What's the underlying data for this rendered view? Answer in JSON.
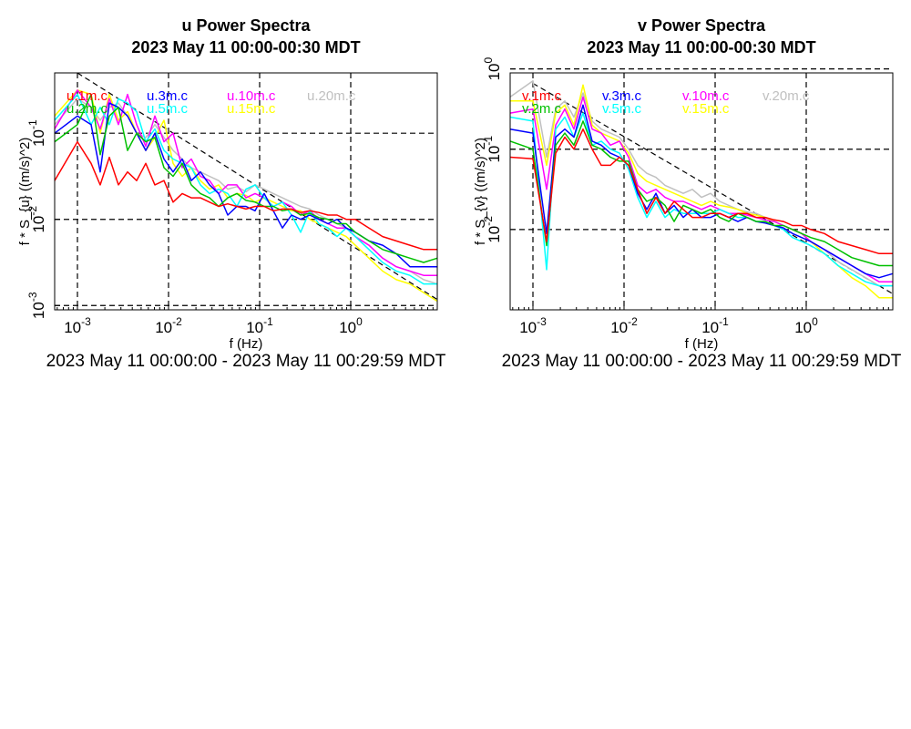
{
  "chart_data": [
    {
      "type": "line",
      "title": "u Power Spectra",
      "subtitle": "2023 May 11 00:00-00:30 MDT",
      "xlabel": "f (Hz)",
      "ylabel": "f * S_{u} ((m/s)^2)",
      "date_range": "2023 May 11 00:00:00 - 2023 May 11 00:29:59 MDT",
      "x_scale": "log",
      "y_scale": "log",
      "xlim_log10": [
        -3.25,
        0.95
      ],
      "ylim_log10": [
        -3.05,
        -0.3
      ],
      "xticks": [
        {
          "base": "10",
          "exp": "-3",
          "log": -3
        },
        {
          "base": "10",
          "exp": "-2",
          "log": -2
        },
        {
          "base": "10",
          "exp": "-1",
          "log": -1
        },
        {
          "base": "10",
          "exp": "0",
          "log": 0
        }
      ],
      "yticks": [
        {
          "base": "10",
          "exp": "-3",
          "log": -3
        },
        {
          "base": "10",
          "exp": "-2",
          "log": -2
        },
        {
          "base": "10",
          "exp": "-1",
          "log": -1
        }
      ],
      "grid": "dashed at decades",
      "reference_line": {
        "style": "dashed",
        "slope": -0.667,
        "log_x": [
          -3,
          0.95
        ],
        "log_y": [
          -0.3,
          -2.93
        ]
      },
      "x_log": [
        -3.25,
        -3.0,
        -2.85,
        -2.75,
        -2.65,
        -2.55,
        -2.45,
        -2.35,
        -2.25,
        -2.15,
        -2.05,
        -1.95,
        -1.85,
        -1.75,
        -1.65,
        -1.55,
        -1.45,
        -1.35,
        -1.25,
        -1.15,
        -1.05,
        -0.95,
        -0.85,
        -0.75,
        -0.65,
        -0.55,
        -0.45,
        -0.35,
        -0.25,
        -0.15,
        -0.05,
        0.05,
        0.2,
        0.35,
        0.5,
        0.65,
        0.8,
        0.95
      ],
      "series": [
        {
          "name": "u.1m.c",
          "color": "#ff0000",
          "values_log10": [
            -1.55,
            -1.1,
            -1.35,
            -1.6,
            -1.28,
            -1.6,
            -1.45,
            -1.55,
            -1.35,
            -1.6,
            -1.55,
            -1.8,
            -1.7,
            -1.75,
            -1.75,
            -1.8,
            -1.85,
            -1.82,
            -1.85,
            -1.88,
            -1.85,
            -1.85,
            -1.9,
            -1.88,
            -1.88,
            -1.92,
            -1.9,
            -1.92,
            -1.95,
            -1.95,
            -2.0,
            -2.0,
            -2.1,
            -2.2,
            -2.25,
            -2.3,
            -2.35,
            -2.35
          ]
        },
        {
          "name": "u.2m.c",
          "color": "#00c000",
          "values_log10": [
            -1.1,
            -0.9,
            -0.55,
            -1.25,
            -0.8,
            -0.7,
            -1.2,
            -1.0,
            -1.1,
            -1.05,
            -1.4,
            -1.5,
            -1.35,
            -1.6,
            -1.7,
            -1.75,
            -1.85,
            -1.75,
            -1.7,
            -1.78,
            -1.8,
            -1.85,
            -1.85,
            -1.9,
            -1.88,
            -1.95,
            -1.93,
            -1.98,
            -2.0,
            -2.05,
            -2.05,
            -2.15,
            -2.25,
            -2.35,
            -2.4,
            -2.45,
            -2.5,
            -2.45
          ]
        },
        {
          "name": "u.3m.c",
          "color": "#0000ff",
          "values_log10": [
            -1.0,
            -0.8,
            -0.9,
            -1.45,
            -0.65,
            -0.7,
            -0.8,
            -1.0,
            -1.2,
            -1.0,
            -1.3,
            -1.45,
            -1.3,
            -1.55,
            -1.45,
            -1.6,
            -1.7,
            -1.95,
            -1.85,
            -1.85,
            -1.9,
            -1.7,
            -1.9,
            -2.1,
            -1.95,
            -2.0,
            -1.95,
            -2.0,
            -2.05,
            -2.0,
            -2.1,
            -2.15,
            -2.25,
            -2.3,
            -2.4,
            -2.55,
            -2.55,
            -2.55
          ]
        },
        {
          "name": "u.5m.c",
          "color": "#00ffff",
          "values_log10": [
            -0.85,
            -0.55,
            -0.9,
            -0.7,
            -0.9,
            -0.6,
            -0.65,
            -0.75,
            -1.1,
            -0.95,
            -1.2,
            -1.3,
            -1.35,
            -1.4,
            -1.6,
            -1.7,
            -1.65,
            -1.7,
            -1.85,
            -1.65,
            -1.6,
            -1.75,
            -1.85,
            -1.8,
            -1.95,
            -2.15,
            -1.9,
            -2.05,
            -2.1,
            -2.2,
            -2.1,
            -2.2,
            -2.35,
            -2.5,
            -2.6,
            -2.65,
            -2.75,
            -2.75
          ]
        },
        {
          "name": "u.10m.c",
          "color": "#ff00ff",
          "values_log10": [
            -0.95,
            -0.5,
            -0.7,
            -0.95,
            -0.6,
            -0.9,
            -0.55,
            -0.9,
            -1.15,
            -0.8,
            -1.1,
            -1.0,
            -1.4,
            -1.3,
            -1.5,
            -1.55,
            -1.7,
            -1.6,
            -1.6,
            -1.75,
            -1.7,
            -1.75,
            -1.85,
            -1.8,
            -1.85,
            -1.95,
            -1.9,
            -2.0,
            -2.05,
            -2.1,
            -2.1,
            -2.2,
            -2.3,
            -2.45,
            -2.55,
            -2.6,
            -2.65,
            -2.65
          ]
        },
        {
          "name": "u.15m.c",
          "color": "#ffff00",
          "values_log10": [
            -0.8,
            -0.5,
            -0.55,
            -1.0,
            -0.55,
            -0.85,
            -0.75,
            -1.0,
            -1.2,
            -1.05,
            -0.85,
            -1.35,
            -1.5,
            -1.4,
            -1.55,
            -1.65,
            -1.6,
            -1.75,
            -1.7,
            -1.72,
            -1.8,
            -1.75,
            -1.8,
            -1.85,
            -1.9,
            -1.9,
            -2.0,
            -2.05,
            -2.1,
            -2.15,
            -2.2,
            -2.3,
            -2.45,
            -2.6,
            -2.7,
            -2.75,
            -2.85,
            -2.95
          ]
        },
        {
          "name": "u.20m.c",
          "color": "#c0c0c0",
          "values_log10": [
            -0.9,
            -0.6,
            -0.7,
            -0.85,
            -0.7,
            -0.65,
            -0.8,
            -1.0,
            -1.05,
            -0.9,
            -1.05,
            -1.2,
            -1.3,
            -1.4,
            -1.45,
            -1.5,
            -1.55,
            -1.65,
            -1.62,
            -1.68,
            -1.6,
            -1.65,
            -1.7,
            -1.75,
            -1.8,
            -1.85,
            -1.88,
            -1.95,
            -2.0,
            -2.05,
            -2.1,
            -2.2,
            -2.3,
            -2.45,
            -2.55,
            -2.6,
            -2.7,
            -2.75
          ]
        }
      ]
    },
    {
      "type": "line",
      "title": "v Power Spectra",
      "subtitle": "2023 May 11 00:00-00:30 MDT",
      "xlabel": "f (Hz)",
      "ylabel": "f * S_{v} ((m/s)^2)",
      "date_range": "2023 May 11 00:00:00 - 2023 May 11 00:29:59 MDT",
      "x_scale": "log",
      "y_scale": "log",
      "xlim_log10": [
        -3.25,
        0.95
      ],
      "ylim_log10": [
        -3.0,
        -0.05
      ],
      "xticks": [
        {
          "base": "10",
          "exp": "-3",
          "log": -3
        },
        {
          "base": "10",
          "exp": "-2",
          "log": -2
        },
        {
          "base": "10",
          "exp": "-1",
          "log": -1
        },
        {
          "base": "10",
          "exp": "0",
          "log": 0
        }
      ],
      "yticks": [
        {
          "base": "10",
          "exp": "-2",
          "log": -2
        },
        {
          "base": "10",
          "exp": "-1",
          "log": -1
        },
        {
          "base": "10",
          "exp": "0",
          "log": 0
        }
      ],
      "grid": "dashed at decades",
      "reference_line": {
        "style": "dashed",
        "slope": -0.667,
        "log_x": [
          -3,
          0.95
        ],
        "log_y": [
          -0.18,
          -2.8
        ]
      },
      "x_log": [
        -3.25,
        -3.0,
        -2.85,
        -2.75,
        -2.65,
        -2.55,
        -2.45,
        -2.35,
        -2.25,
        -2.15,
        -2.05,
        -1.95,
        -1.85,
        -1.75,
        -1.65,
        -1.55,
        -1.45,
        -1.35,
        -1.25,
        -1.15,
        -1.05,
        -0.95,
        -0.85,
        -0.75,
        -0.65,
        -0.55,
        -0.45,
        -0.35,
        -0.25,
        -0.15,
        -0.05,
        0.05,
        0.2,
        0.35,
        0.5,
        0.65,
        0.8,
        0.95
      ],
      "series": [
        {
          "name": "v.1m.c",
          "color": "#ff0000",
          "values_log10": [
            -1.1,
            -1.12,
            -2.15,
            -1.05,
            -0.85,
            -1.0,
            -0.75,
            -1.0,
            -1.2,
            -1.2,
            -1.1,
            -1.2,
            -1.5,
            -1.8,
            -1.6,
            -1.8,
            -1.65,
            -1.75,
            -1.85,
            -1.85,
            -1.8,
            -1.8,
            -1.85,
            -1.8,
            -1.8,
            -1.85,
            -1.85,
            -1.88,
            -1.9,
            -1.95,
            -1.95,
            -2.0,
            -2.05,
            -2.15,
            -2.2,
            -2.25,
            -2.3,
            -2.3
          ]
        },
        {
          "name": "v.2m.c",
          "color": "#00c000",
          "values_log10": [
            -0.9,
            -1.0,
            -2.2,
            -0.95,
            -0.8,
            -0.95,
            -0.65,
            -0.95,
            -1.0,
            -1.1,
            -1.15,
            -1.15,
            -1.5,
            -1.65,
            -1.6,
            -1.7,
            -1.9,
            -1.7,
            -1.75,
            -1.8,
            -1.75,
            -1.85,
            -1.9,
            -1.8,
            -1.85,
            -1.9,
            -1.9,
            -1.95,
            -1.95,
            -2.0,
            -2.05,
            -2.1,
            -2.15,
            -2.25,
            -2.35,
            -2.4,
            -2.45,
            -2.45
          ]
        },
        {
          "name": "v.3m.c",
          "color": "#0000ff",
          "values_log10": [
            -0.75,
            -0.8,
            -2.05,
            -0.85,
            -0.75,
            -0.85,
            -0.45,
            -0.9,
            -0.95,
            -1.05,
            -1.1,
            -1.2,
            -1.55,
            -1.75,
            -1.55,
            -1.8,
            -1.7,
            -1.85,
            -1.75,
            -1.85,
            -1.85,
            -1.8,
            -1.85,
            -1.9,
            -1.85,
            -1.9,
            -1.92,
            -1.95,
            -1.98,
            -2.05,
            -2.1,
            -2.15,
            -2.25,
            -2.35,
            -2.45,
            -2.55,
            -2.6,
            -2.55
          ]
        },
        {
          "name": "v.5m.c",
          "color": "#00ffff",
          "values_log10": [
            -0.6,
            -0.65,
            -2.5,
            -0.75,
            -0.6,
            -0.85,
            -0.55,
            -0.95,
            -0.9,
            -1.0,
            -1.05,
            -1.25,
            -1.6,
            -1.85,
            -1.65,
            -1.85,
            -1.75,
            -1.8,
            -1.8,
            -1.8,
            -1.8,
            -1.75,
            -1.8,
            -1.85,
            -1.85,
            -1.9,
            -1.9,
            -1.95,
            -2.0,
            -2.1,
            -2.15,
            -2.2,
            -2.3,
            -2.45,
            -2.55,
            -2.65,
            -2.7,
            -2.7
          ]
        },
        {
          "name": "v.10m.c",
          "color": "#ff00ff",
          "values_log10": [
            -0.55,
            -0.5,
            -1.5,
            -0.7,
            -0.5,
            -0.75,
            -0.35,
            -0.75,
            -0.8,
            -0.95,
            -0.9,
            -1.1,
            -1.45,
            -1.55,
            -1.5,
            -1.6,
            -1.65,
            -1.65,
            -1.7,
            -1.75,
            -1.7,
            -1.75,
            -1.8,
            -1.8,
            -1.82,
            -1.85,
            -1.88,
            -1.9,
            -1.95,
            -2.0,
            -2.05,
            -2.15,
            -2.25,
            -2.35,
            -2.45,
            -2.55,
            -2.65,
            -2.65
          ]
        },
        {
          "name": "v.15m.c",
          "color": "#ffff00",
          "values_log10": [
            -0.4,
            -0.4,
            -1.2,
            -0.55,
            -0.45,
            -0.7,
            -0.2,
            -0.7,
            -0.8,
            -0.85,
            -0.9,
            -1.05,
            -1.3,
            -1.4,
            -1.45,
            -1.5,
            -1.55,
            -1.6,
            -1.65,
            -1.7,
            -1.65,
            -1.7,
            -1.72,
            -1.75,
            -1.8,
            -1.82,
            -1.85,
            -1.9,
            -1.95,
            -2.0,
            -2.05,
            -2.15,
            -2.3,
            -2.45,
            -2.6,
            -2.7,
            -2.85,
            -2.85
          ]
        },
        {
          "name": "v.20m.c",
          "color": "#c0c0c0",
          "values_log10": [
            -0.35,
            -0.15,
            -1.1,
            -0.5,
            -0.4,
            -0.6,
            -0.3,
            -0.65,
            -0.75,
            -0.8,
            -0.85,
            -1.0,
            -1.2,
            -1.3,
            -1.35,
            -1.45,
            -1.5,
            -1.55,
            -1.5,
            -1.6,
            -1.55,
            -1.65,
            -1.7,
            -1.75,
            -1.78,
            -1.8,
            -1.85,
            -1.9,
            -1.95,
            -2.0,
            -2.05,
            -2.15,
            -2.25,
            -2.4,
            -2.5,
            -2.6,
            -2.7,
            -2.7
          ]
        }
      ]
    }
  ]
}
